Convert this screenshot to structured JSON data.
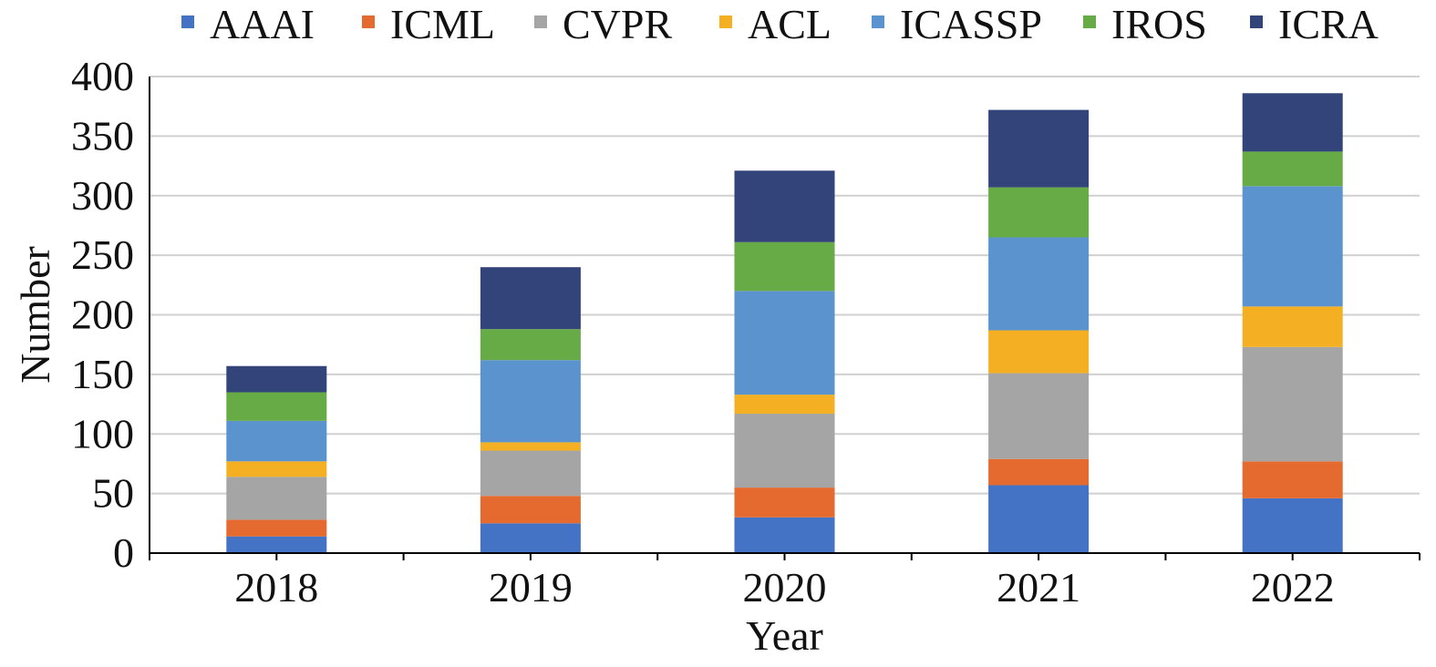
{
  "chart_data": {
    "type": "bar",
    "stacked": true,
    "categories": [
      "2018",
      "2019",
      "2020",
      "2021",
      "2022"
    ],
    "series": [
      {
        "name": "AAAI",
        "color": "#4472C4",
        "values": [
          14,
          25,
          30,
          57,
          46
        ]
      },
      {
        "name": "ICML",
        "color": "#E46A2F",
        "values": [
          14,
          23,
          25,
          22,
          31
        ]
      },
      {
        "name": "CVPR",
        "color": "#A5A5A5",
        "values": [
          36,
          38,
          62,
          72,
          96
        ]
      },
      {
        "name": "ACL",
        "color": "#F4B022",
        "values": [
          13,
          7,
          16,
          36,
          34
        ]
      },
      {
        "name": "ICASSP",
        "color": "#5B93CF",
        "values": [
          34,
          69,
          87,
          78,
          101
        ]
      },
      {
        "name": "IROS",
        "color": "#66AB46",
        "values": [
          24,
          26,
          41,
          42,
          29
        ]
      },
      {
        "name": "ICRA",
        "color": "#33447A",
        "values": [
          22,
          52,
          60,
          65,
          49
        ]
      }
    ],
    "title": "",
    "xlabel": "Year",
    "ylabel": "Number",
    "ylim": [
      0,
      400
    ],
    "yticks": [
      0,
      50,
      100,
      150,
      200,
      250,
      300,
      350,
      400
    ],
    "grid": true,
    "legend": "top"
  }
}
